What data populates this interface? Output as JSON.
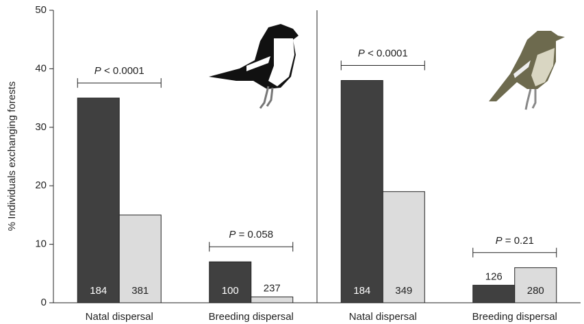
{
  "chart_data": {
    "type": "bar",
    "ylabel": "% Individuals exchanging forests",
    "ylim": [
      0,
      50
    ],
    "yticks": [
      0,
      10,
      20,
      30,
      40,
      50
    ],
    "panels": [
      {
        "categories": [
          "Natal dispersal",
          "Breeding dispersal"
        ],
        "series": [
          {
            "color": "#404040",
            "values": [
              35,
              7
            ],
            "sample_sizes": [
              184,
              100
            ]
          },
          {
            "color": "#dcdcdc",
            "values": [
              15,
              1
            ],
            "sample_sizes": [
              381,
              237
            ]
          }
        ],
        "annotations": [
          {
            "italic": "P",
            "text": "< 0.0001"
          },
          {
            "italic": "P",
            "text": "= 0.058"
          }
        ]
      },
      {
        "categories": [
          "Natal dispersal",
          "Breeding dispersal"
        ],
        "series": [
          {
            "color": "#404040",
            "values": [
              38,
              3
            ],
            "sample_sizes": [
              184,
              126
            ]
          },
          {
            "color": "#dcdcdc",
            "values": [
              19,
              6
            ],
            "sample_sizes": [
              349,
              280
            ]
          }
        ],
        "annotations": [
          {
            "italic": "P",
            "text": "< 0.0001"
          },
          {
            "italic": "P",
            "text": "= 0.21"
          }
        ]
      }
    ]
  }
}
